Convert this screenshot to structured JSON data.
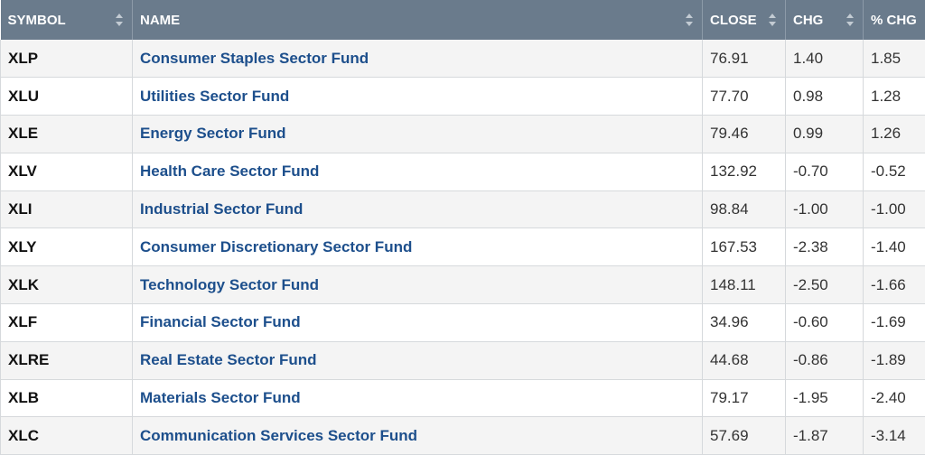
{
  "table": {
    "headers": {
      "symbol": "SYMBOL",
      "name": "NAME",
      "close": "CLOSE",
      "chg": "CHG",
      "pct_chg": "% CHG"
    },
    "rows": [
      {
        "symbol": "XLP",
        "name": "Consumer Staples Sector Fund",
        "close": "76.91",
        "chg": "1.40",
        "pct_chg": "1.85"
      },
      {
        "symbol": "XLU",
        "name": "Utilities Sector Fund",
        "close": "77.70",
        "chg": "0.98",
        "pct_chg": "1.28"
      },
      {
        "symbol": "XLE",
        "name": "Energy Sector Fund",
        "close": "79.46",
        "chg": "0.99",
        "pct_chg": "1.26"
      },
      {
        "symbol": "XLV",
        "name": "Health Care Sector Fund",
        "close": "132.92",
        "chg": "-0.70",
        "pct_chg": "-0.52"
      },
      {
        "symbol": "XLI",
        "name": "Industrial Sector Fund",
        "close": "98.84",
        "chg": "-1.00",
        "pct_chg": "-1.00"
      },
      {
        "symbol": "XLY",
        "name": "Consumer Discretionary Sector Fund",
        "close": "167.53",
        "chg": "-2.38",
        "pct_chg": "-1.40"
      },
      {
        "symbol": "XLK",
        "name": "Technology Sector Fund",
        "close": "148.11",
        "chg": "-2.50",
        "pct_chg": "-1.66"
      },
      {
        "symbol": "XLF",
        "name": "Financial Sector Fund",
        "close": "34.96",
        "chg": "-0.60",
        "pct_chg": "-1.69"
      },
      {
        "symbol": "XLRE",
        "name": "Real Estate Sector Fund",
        "close": "44.68",
        "chg": "-0.86",
        "pct_chg": "-1.89"
      },
      {
        "symbol": "XLB",
        "name": "Materials Sector Fund",
        "close": "79.17",
        "chg": "-1.95",
        "pct_chg": "-2.40"
      },
      {
        "symbol": "XLC",
        "name": "Communication Services Sector Fund",
        "close": "57.69",
        "chg": "-1.87",
        "pct_chg": "-3.14"
      }
    ]
  },
  "colors": {
    "header_bg": "#6a7b8c",
    "link": "#1d4f8c"
  }
}
